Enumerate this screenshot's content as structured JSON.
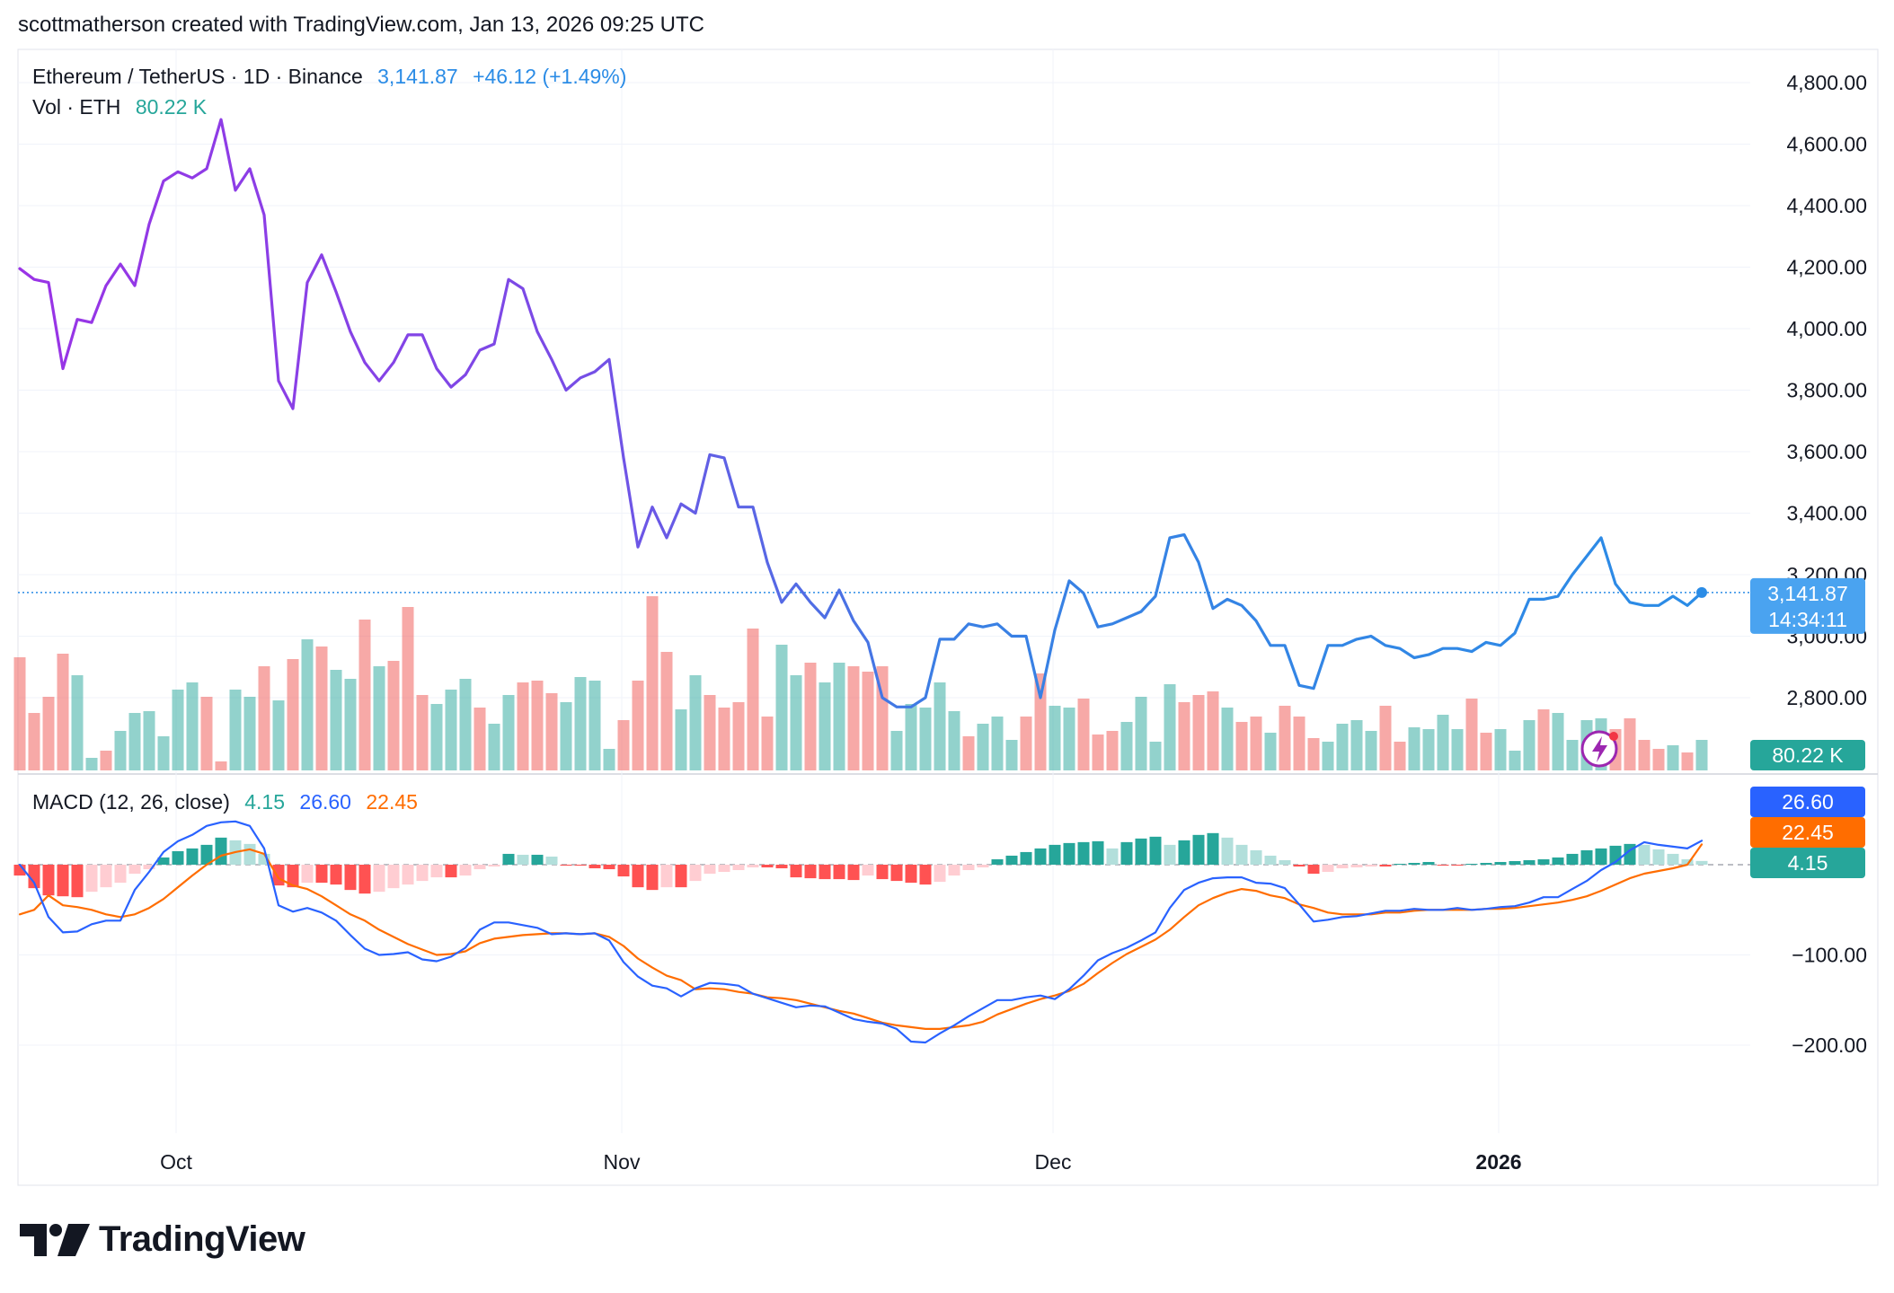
{
  "header": "scottmatherson created with TradingView.com, Jan 13, 2026 09:25 UTC",
  "legend": {
    "symbol": "Ethereum / TetherUS · 1D · Binance",
    "price": "3,141.87",
    "change": "+46.12 (+1.49%)",
    "vol_label": "Vol · ETH",
    "vol_value": "80.22 K",
    "macd_label": "MACD (12, 26, close)",
    "macd_hist": "4.15",
    "macd_line": "26.60",
    "macd_signal": "22.45"
  },
  "price_tags": {
    "last_price": "3,141.87",
    "countdown": "14:34:11",
    "volume": "80.22 K",
    "macd_line": "26.60",
    "macd_signal": "22.45",
    "macd_hist": "4.15"
  },
  "brand": "TradingView",
  "colors": {
    "price_purple": "#9a33e6",
    "price_blue": "#2b8ce6",
    "up": "#26a69a",
    "down": "#ef5350",
    "macd_line": "#2962ff",
    "signal_line": "#ff6d00",
    "tag_blue": "#4aa3f0"
  },
  "chart_data": [
    {
      "type": "line",
      "title": "Ethereum / TetherUS · 1D · Binance",
      "x_labels": [
        "Oct",
        "Nov",
        "Dec",
        "2026"
      ],
      "x_label_days": [
        11,
        42,
        72,
        103
      ],
      "y_ticks": [
        "4,800.00",
        "4,600.00",
        "4,400.00",
        "4,200.00",
        "4,000.00",
        "3,800.00",
        "3,600.00",
        "3,400.00",
        "3,200.00",
        "3,000.00",
        "2,800.00"
      ],
      "ylim": [
        2760,
        4860
      ],
      "last_price": 3141.87,
      "series": [
        {
          "values": [
            4195,
            4160,
            4150,
            3870,
            4030,
            4020,
            4140,
            4210,
            4140,
            4340,
            4480,
            4510,
            4490,
            4520,
            4680,
            4450,
            4520,
            4370,
            3830,
            3740,
            4150,
            4240,
            4120,
            3990,
            3890,
            3830,
            3890,
            3980,
            3980,
            3870,
            3810,
            3850,
            3930,
            3950,
            4160,
            4130,
            3990,
            3900,
            3800,
            3840,
            3860,
            3900,
            3580,
            3290,
            3420,
            3320,
            3430,
            3400,
            3590,
            3580,
            3420,
            3420,
            3240,
            3110,
            3170,
            3110,
            3060,
            3150,
            3050,
            2980,
            2800,
            2770,
            2770,
            2800,
            2990,
            2990,
            3040,
            3030,
            3040,
            3000,
            3000,
            2800,
            3020,
            3180,
            3140,
            3030,
            3040,
            3060,
            3080,
            3130,
            3320,
            3330,
            3240,
            3090,
            3120,
            3100,
            3050,
            2970,
            2970,
            2840,
            2830,
            2970,
            2970,
            2990,
            3000,
            2970,
            2960,
            2930,
            2940,
            2960,
            2960,
            2950,
            2980,
            2970,
            3010,
            3120,
            3120,
            3130,
            3200,
            3260,
            3320,
            3170,
            3110,
            3100,
            3100,
            3130,
            3100,
            3141.87
          ]
        }
      ]
    },
    {
      "type": "bar",
      "title": "Vol · ETH",
      "last_value": "80.22 K",
      "relative_volume": [
        0.63,
        0.32,
        0.41,
        0.65,
        0.53,
        0.07,
        0.11,
        0.22,
        0.32,
        0.33,
        0.19,
        0.45,
        0.49,
        0.41,
        0.05,
        0.45,
        0.41,
        0.58,
        0.39,
        0.62,
        0.73,
        0.69,
        0.56,
        0.51,
        0.84,
        0.58,
        0.61,
        0.91,
        0.42,
        0.37,
        0.45,
        0.51,
        0.35,
        0.26,
        0.42,
        0.49,
        0.5,
        0.43,
        0.38,
        0.52,
        0.5,
        0.12,
        0.28,
        0.5,
        0.97,
        0.66,
        0.34,
        0.53,
        0.42,
        0.35,
        0.38,
        0.79,
        0.3,
        0.7,
        0.53,
        0.6,
        0.49,
        0.6,
        0.58,
        0.55,
        0.58,
        0.22,
        0.37,
        0.35,
        0.49,
        0.33,
        0.19,
        0.26,
        0.3,
        0.17,
        0.3,
        0.54,
        0.36,
        0.35,
        0.4,
        0.2,
        0.22,
        0.27,
        0.41,
        0.16,
        0.48,
        0.38,
        0.42,
        0.44,
        0.35,
        0.27,
        0.3,
        0.21,
        0.36,
        0.3,
        0.18,
        0.16,
        0.26,
        0.28,
        0.22,
        0.36,
        0.16,
        0.24,
        0.23,
        0.31,
        0.23,
        0.4,
        0.21,
        0.23,
        0.11,
        0.28,
        0.34,
        0.32,
        0.17,
        0.28,
        0.29,
        0.23,
        0.29,
        0.17,
        0.12,
        0.14,
        0.1,
        0.17
      ],
      "up_down": [
        0,
        0,
        0,
        0,
        1,
        1,
        0,
        1,
        1,
        1,
        1,
        1,
        1,
        0,
        0,
        1,
        1,
        0,
        1,
        0,
        1,
        0,
        1,
        1,
        0,
        1,
        0,
        0,
        0,
        1,
        1,
        1,
        0,
        1,
        1,
        0,
        0,
        0,
        1,
        1,
        1,
        1,
        0,
        0,
        0,
        0,
        1,
        1,
        0,
        0,
        0,
        0,
        0,
        1,
        1,
        0,
        1,
        1,
        0,
        0,
        0,
        1,
        1,
        1,
        1,
        1,
        0,
        1,
        1,
        1,
        0,
        0,
        1,
        1,
        0,
        0,
        0,
        1,
        1,
        1,
        1,
        0,
        0,
        0,
        1,
        0,
        0,
        1,
        0,
        0,
        0,
        1,
        1,
        1,
        1,
        0,
        0,
        1,
        1,
        1,
        1,
        0,
        0,
        1,
        1,
        1,
        0,
        1,
        1,
        1,
        1,
        0,
        0,
        0,
        0,
        1,
        0,
        1
      ]
    },
    {
      "type": "line",
      "title": "MACD (12, 26, close)",
      "y_ticks": [
        "−100.00",
        "−200.00"
      ],
      "ylim": [
        -300,
        60
      ],
      "last_values": {
        "macd": 26.6,
        "signal": 22.45,
        "histogram": 4.15
      },
      "series": [
        {
          "name": "MACD",
          "values": [
            0,
            -20,
            -58,
            -75,
            -74,
            -66,
            -62,
            -62,
            -28,
            -8,
            14,
            26,
            33,
            43,
            47,
            48,
            43,
            18,
            -45,
            -52,
            -48,
            -53,
            -62,
            -78,
            -93,
            -100,
            -99,
            -97,
            -105,
            -107,
            -102,
            -92,
            -72,
            -64,
            -64,
            -67,
            -70,
            -77,
            -76,
            -77,
            -76,
            -84,
            -108,
            -124,
            -134,
            -137,
            -146,
            -137,
            -131,
            -132,
            -134,
            -143,
            -148,
            -153,
            -158,
            -156,
            -157,
            -164,
            -171,
            -174,
            -176,
            -182,
            -196,
            -197,
            -187,
            -178,
            -168,
            -159,
            -150,
            -150,
            -147,
            -145,
            -149,
            -138,
            -123,
            -106,
            -98,
            -92,
            -84,
            -75,
            -48,
            -28,
            -20,
            -15,
            -14,
            -14,
            -20,
            -21,
            -26,
            -44,
            -63,
            -61,
            -58,
            -57,
            -54,
            -51,
            -51,
            -49,
            -50,
            -50,
            -48,
            -50,
            -49,
            -47,
            -46,
            -42,
            -36,
            -36,
            -27,
            -18,
            -6,
            3,
            16,
            25,
            22,
            20,
            18,
            26.6
          ]
        },
        {
          "name": "Signal",
          "values": [
            -55,
            -50,
            -34,
            -45,
            -47,
            -50,
            -55,
            -58,
            -55,
            -48,
            -38,
            -25,
            -12,
            0,
            10,
            14,
            17,
            12,
            -15,
            -23,
            -27,
            -35,
            -45,
            -55,
            -62,
            -72,
            -80,
            -88,
            -94,
            -100,
            -99,
            -96,
            -87,
            -82,
            -80,
            -78,
            -77,
            -76,
            -76,
            -77,
            -76,
            -80,
            -90,
            -104,
            -114,
            -123,
            -128,
            -138,
            -137,
            -138,
            -141,
            -143,
            -147,
            -148,
            -150,
            -154,
            -158,
            -162,
            -165,
            -170,
            -175,
            -178,
            -180,
            -182,
            -182,
            -180,
            -178,
            -174,
            -166,
            -160,
            -154,
            -149,
            -145,
            -140,
            -132,
            -120,
            -109,
            -99,
            -91,
            -83,
            -72,
            -58,
            -45,
            -37,
            -31,
            -27,
            -29,
            -34,
            -37,
            -44,
            -48,
            -53,
            -55,
            -55,
            -55,
            -53,
            -53,
            -51,
            -50,
            -50,
            -50,
            -50,
            -49,
            -49,
            -48,
            -46,
            -44,
            -42,
            -39,
            -35,
            -29,
            -22,
            -15,
            -10,
            -7,
            -4,
            0,
            22.45
          ]
        },
        {
          "name": "Histogram",
          "values": [
            -12,
            -26,
            -34,
            -35,
            -36,
            -30,
            -25,
            -20,
            -10,
            -5,
            8,
            15,
            18,
            22,
            30,
            27,
            23,
            12,
            -23,
            -25,
            -20,
            -20,
            -22,
            -28,
            -32,
            -30,
            -26,
            -22,
            -18,
            -14,
            -14,
            -12,
            -5,
            -2,
            12,
            11,
            11,
            9,
            -1,
            -1,
            -4,
            -5,
            -13,
            -25,
            -28,
            -25,
            -25,
            -18,
            -10,
            -8,
            -6,
            -3,
            -3,
            -4,
            -14,
            -15,
            -16,
            -16,
            -17,
            -12,
            -16,
            -18,
            -20,
            -22,
            -19,
            -12,
            -6,
            -3,
            6,
            10,
            14,
            18,
            22,
            24,
            25,
            26,
            18,
            25,
            29,
            31,
            22,
            27,
            33,
            35,
            30,
            22,
            16,
            10,
            5,
            -2,
            -10,
            -8,
            -4,
            -3,
            -2,
            -2,
            1,
            2,
            3,
            -1,
            -1,
            1,
            2,
            3,
            4,
            5,
            6,
            8,
            12,
            16,
            18,
            21,
            23,
            22,
            17,
            12,
            6,
            4.15
          ]
        }
      ]
    }
  ]
}
